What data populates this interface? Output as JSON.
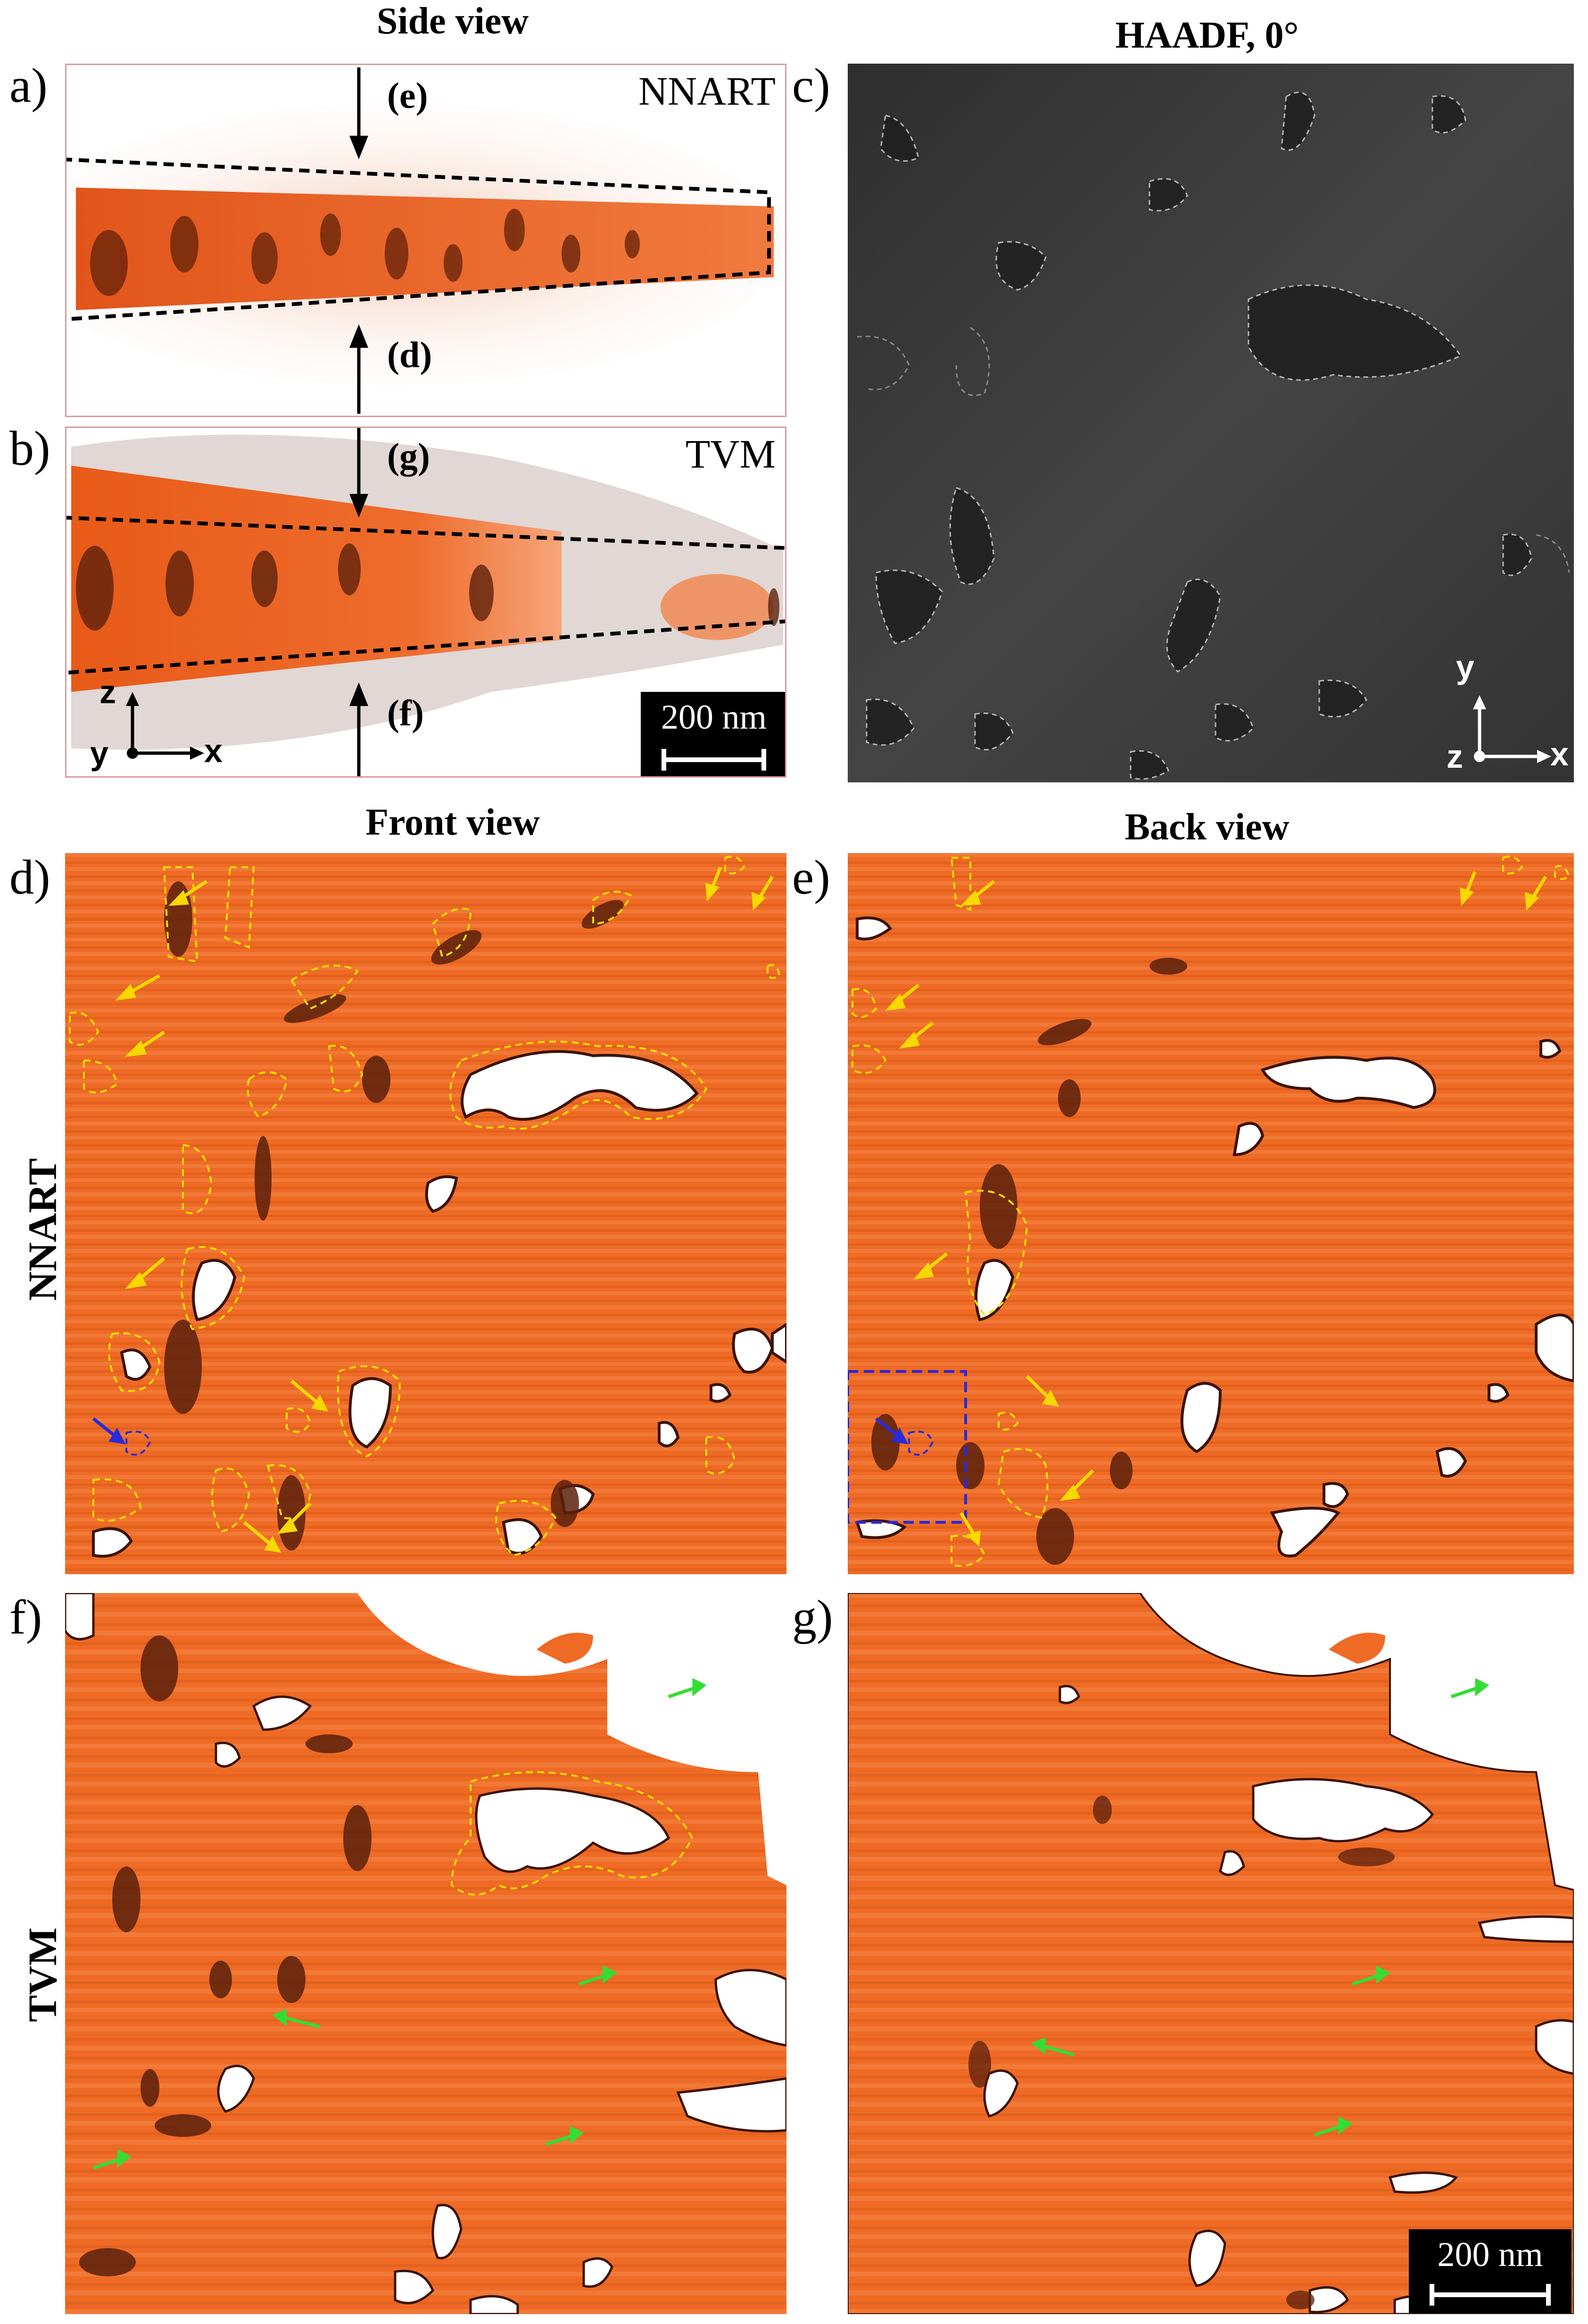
{
  "headers": {
    "side_view": "Side view",
    "haadf": "HAADF, 0°",
    "front_view": "Front view",
    "back_view": "Back view"
  },
  "row_labels": {
    "nnart": "NNART",
    "tvm": "TVM"
  },
  "panels": {
    "a": {
      "letter": "a)",
      "method": "NNART",
      "arrow_top": "(e)",
      "arrow_bottom": "(d)"
    },
    "b": {
      "letter": "b)",
      "method": "TVM",
      "arrow_top": "(g)",
      "arrow_bottom": "(f)",
      "scale": "200 nm",
      "axes": {
        "vertical": "z",
        "origin": "y",
        "horizontal": "x"
      }
    },
    "c": {
      "letter": "c)",
      "axes": {
        "vertical": "y",
        "origin": "z",
        "horizontal": "x"
      }
    },
    "d": {
      "letter": "d)"
    },
    "e": {
      "letter": "e)"
    },
    "f": {
      "letter": "f)"
    },
    "g": {
      "letter": "g)",
      "scale": "200 nm"
    }
  },
  "colors": {
    "material_orange": "#ef6a24",
    "material_dark": "#5a200c",
    "outline_yellow": "#f5e000",
    "arrow_yellow": "#f7d800",
    "arrow_green": "#33dd33",
    "arrow_blue": "#2a2ad8",
    "haadf_gray": "#3a3a3a"
  }
}
